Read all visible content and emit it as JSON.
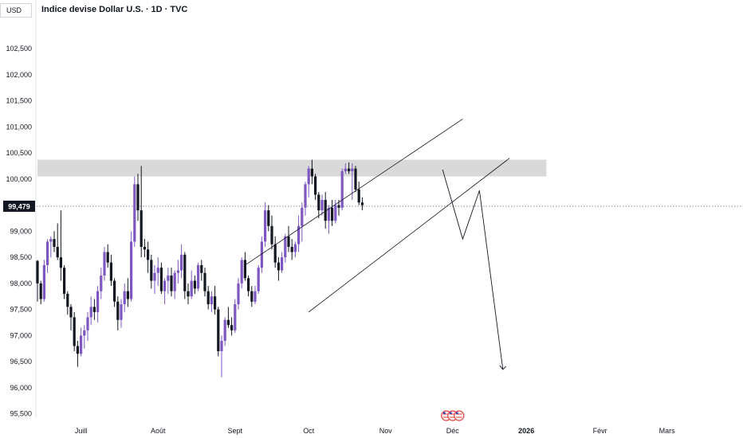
{
  "header": {
    "currency_label": "USD",
    "title": "Indice devise Dollar U.S. · 1D · TVC"
  },
  "price_label": "99,479",
  "colors": {
    "bull": "#7e57c2",
    "bear": "#131722",
    "zone": "#d9d9d9",
    "line": "#131722",
    "flag_red": "#e53935"
  },
  "icons": {
    "event": "us-flag-icon"
  },
  "chart_data": {
    "type": "candlestick",
    "ylim": [
      95.25,
      103.05
    ],
    "xlim": [
      0,
      207
    ],
    "y_ticks": [
      {
        "v": 102.5,
        "label": "102,500"
      },
      {
        "v": 102.0,
        "label": "102,000"
      },
      {
        "v": 101.5,
        "label": "101,500"
      },
      {
        "v": 101.0,
        "label": "101,000"
      },
      {
        "v": 100.5,
        "label": "100,500"
      },
      {
        "v": 100.0,
        "label": "100,000"
      },
      {
        "v": 99.0,
        "label": "99,000"
      },
      {
        "v": 98.5,
        "label": "98,500"
      },
      {
        "v": 98.0,
        "label": "98,000"
      },
      {
        "v": 97.5,
        "label": "97,500"
      },
      {
        "v": 97.0,
        "label": "97,000"
      },
      {
        "v": 96.5,
        "label": "96,500"
      },
      {
        "v": 96.0,
        "label": "96,000"
      },
      {
        "v": 95.5,
        "label": "95,500"
      }
    ],
    "x_ticks": [
      {
        "x": 13,
        "label": "Juill"
      },
      {
        "x": 36,
        "label": "Août"
      },
      {
        "x": 59,
        "label": "Sept"
      },
      {
        "x": 81,
        "label": "Oct"
      },
      {
        "x": 104,
        "label": "Nov"
      },
      {
        "x": 124,
        "label": "Déc"
      },
      {
        "x": 146,
        "label": "2026"
      },
      {
        "x": 168,
        "label": "Févr"
      },
      {
        "x": 188,
        "label": "Mars"
      }
    ],
    "current_price": 99.479,
    "resistance_zone": {
      "x0": 0,
      "x1": 152,
      "y_low": 100.05,
      "y_high": 100.37
    },
    "channel_upper": [
      [
        62,
        98.35
      ],
      [
        127,
        101.15
      ]
    ],
    "channel_lower": [
      [
        81,
        97.45
      ],
      [
        141,
        100.4
      ]
    ],
    "projection": [
      [
        121,
        100.18
      ],
      [
        127,
        98.85
      ],
      [
        132,
        99.78
      ],
      [
        139,
        96.35
      ]
    ],
    "event_x": 124,
    "candles": [
      [
        98.43,
        98.45,
        97.65,
        98.0
      ],
      [
        98.0,
        98.05,
        97.6,
        97.7
      ],
      [
        97.7,
        98.45,
        97.65,
        98.35
      ],
      [
        98.35,
        98.85,
        98.2,
        98.8
      ],
      [
        98.8,
        98.9,
        98.5,
        98.85
      ],
      [
        98.85,
        99.0,
        98.6,
        98.7
      ],
      [
        98.7,
        99.15,
        98.45,
        98.5
      ],
      [
        98.5,
        99.4,
        98.05,
        98.3
      ],
      [
        98.3,
        98.35,
        97.7,
        97.8
      ],
      [
        97.8,
        97.85,
        97.4,
        97.55
      ],
      [
        97.55,
        97.6,
        97.1,
        97.35
      ],
      [
        97.35,
        97.45,
        96.7,
        96.8
      ],
      [
        96.8,
        96.9,
        96.4,
        96.65
      ],
      [
        96.65,
        97.15,
        96.6,
        97.0
      ],
      [
        97.0,
        97.2,
        96.75,
        97.1
      ],
      [
        97.1,
        97.45,
        96.9,
        97.35
      ],
      [
        97.35,
        97.75,
        97.2,
        97.55
      ],
      [
        97.55,
        97.7,
        97.3,
        97.45
      ],
      [
        97.45,
        97.95,
        97.25,
        97.85
      ],
      [
        97.85,
        98.3,
        97.7,
        98.15
      ],
      [
        98.15,
        98.7,
        98.05,
        98.6
      ],
      [
        98.6,
        98.75,
        98.3,
        98.4
      ],
      [
        98.4,
        98.55,
        97.95,
        98.05
      ],
      [
        98.05,
        98.1,
        97.55,
        97.65
      ],
      [
        97.65,
        97.75,
        97.1,
        97.3
      ],
      [
        97.3,
        97.7,
        97.15,
        97.6
      ],
      [
        97.6,
        98.0,
        97.45,
        97.85
      ],
      [
        97.85,
        98.1,
        97.55,
        97.7
      ],
      [
        97.7,
        99.0,
        97.65,
        98.8
      ],
      [
        98.8,
        100.05,
        98.7,
        99.9
      ],
      [
        99.9,
        100.1,
        99.2,
        99.4
      ],
      [
        99.4,
        100.25,
        98.5,
        98.7
      ],
      [
        98.7,
        98.85,
        98.5,
        98.65
      ],
      [
        98.65,
        98.8,
        98.2,
        98.45
      ],
      [
        98.45,
        98.55,
        97.9,
        98.05
      ],
      [
        98.05,
        98.35,
        97.8,
        98.2
      ],
      [
        98.2,
        98.5,
        97.95,
        98.3
      ],
      [
        98.3,
        98.4,
        97.8,
        97.85
      ],
      [
        97.85,
        98.1,
        97.6,
        98.05
      ],
      [
        98.05,
        98.3,
        97.8,
        98.15
      ],
      [
        98.15,
        98.3,
        97.75,
        97.85
      ],
      [
        97.85,
        98.25,
        97.7,
        98.2
      ],
      [
        98.2,
        98.45,
        98.0,
        98.25
      ],
      [
        98.25,
        98.75,
        98.1,
        98.55
      ],
      [
        98.55,
        98.6,
        97.7,
        97.85
      ],
      [
        97.85,
        98.0,
        97.6,
        97.75
      ],
      [
        97.75,
        98.25,
        97.7,
        98.05
      ],
      [
        98.05,
        98.15,
        97.8,
        97.9
      ],
      [
        97.9,
        98.4,
        97.85,
        98.35
      ],
      [
        98.35,
        98.45,
        98.05,
        98.2
      ],
      [
        98.2,
        98.3,
        97.75,
        97.85
      ],
      [
        97.85,
        97.95,
        97.5,
        97.6
      ],
      [
        97.6,
        97.85,
        97.45,
        97.75
      ],
      [
        97.75,
        97.95,
        97.4,
        97.5
      ],
      [
        97.5,
        97.55,
        96.6,
        96.7
      ],
      [
        96.7,
        97.0,
        96.2,
        96.9
      ],
      [
        96.9,
        97.35,
        96.8,
        97.3
      ],
      [
        97.3,
        97.55,
        97.15,
        97.2
      ],
      [
        97.2,
        97.35,
        97.0,
        97.1
      ],
      [
        97.1,
        97.7,
        97.05,
        97.6
      ],
      [
        97.6,
        98.1,
        97.5,
        98.0
      ],
      [
        98.0,
        98.5,
        97.9,
        98.45
      ],
      [
        98.45,
        98.6,
        98.05,
        98.1
      ],
      [
        98.1,
        98.15,
        97.75,
        97.85
      ],
      [
        97.85,
        97.95,
        97.55,
        97.65
      ],
      [
        97.65,
        97.95,
        97.6,
        97.85
      ],
      [
        97.85,
        98.35,
        97.8,
        98.3
      ],
      [
        98.3,
        98.9,
        98.2,
        98.8
      ],
      [
        98.8,
        99.55,
        98.7,
        99.4
      ],
      [
        99.4,
        99.5,
        99.0,
        99.1
      ],
      [
        99.1,
        99.3,
        98.65,
        98.75
      ],
      [
        98.75,
        98.9,
        98.3,
        98.4
      ],
      [
        98.4,
        98.5,
        98.05,
        98.25
      ],
      [
        98.25,
        98.6,
        98.2,
        98.5
      ],
      [
        98.5,
        98.95,
        98.4,
        98.9
      ],
      [
        98.9,
        99.1,
        98.6,
        98.7
      ],
      [
        98.7,
        98.85,
        98.45,
        98.6
      ],
      [
        98.6,
        98.8,
        98.5,
        98.75
      ],
      [
        98.75,
        99.3,
        98.6,
        99.1
      ],
      [
        99.1,
        99.55,
        98.8,
        99.45
      ],
      [
        99.45,
        99.95,
        99.3,
        99.9
      ],
      [
        99.9,
        100.25,
        99.65,
        100.2
      ],
      [
        100.2,
        100.37,
        99.9,
        100.05
      ],
      [
        100.05,
        100.1,
        99.6,
        99.7
      ],
      [
        99.7,
        99.75,
        99.25,
        99.4
      ],
      [
        99.4,
        99.7,
        99.3,
        99.6
      ],
      [
        99.6,
        99.75,
        99.05,
        99.2
      ],
      [
        99.2,
        99.5,
        98.95,
        99.45
      ],
      [
        99.45,
        99.6,
        99.1,
        99.2
      ],
      [
        99.2,
        99.6,
        99.15,
        99.5
      ],
      [
        99.5,
        99.6,
        99.3,
        99.45
      ],
      [
        99.45,
        100.2,
        99.4,
        100.15
      ],
      [
        100.15,
        100.3,
        100.1,
        100.2
      ],
      [
        100.2,
        100.32,
        100.1,
        100.15
      ],
      [
        100.15,
        100.3,
        99.6,
        100.2
      ],
      [
        100.2,
        100.25,
        99.75,
        99.8
      ],
      [
        99.8,
        99.95,
        99.5,
        99.55
      ],
      [
        99.55,
        99.65,
        99.4,
        99.5
      ]
    ]
  }
}
